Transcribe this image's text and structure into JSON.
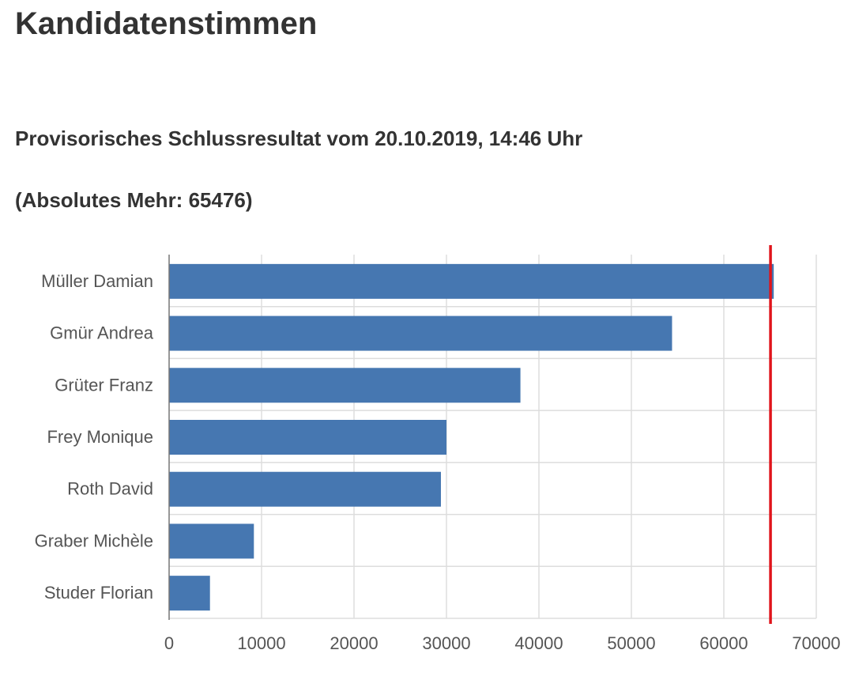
{
  "title": "Kandidatenstimmen",
  "subtitle": "Provisorisches Schlussresultat vom 20.10.2019, 14:46 Uhr",
  "majority_text": "(Absolutes Mehr: 65476)",
  "chart_data": {
    "type": "bar",
    "orientation": "horizontal",
    "categories": [
      "Müller Damian",
      "Gmür Andrea",
      "Grüter Franz",
      "Frey Monique",
      "Roth David",
      "Graber Michèle",
      "Studer Florian"
    ],
    "values": [
      65400,
      54400,
      38000,
      30000,
      29400,
      9170,
      4420
    ],
    "xlim": [
      0,
      70000
    ],
    "xticks": [
      "0",
      "10000",
      "20000",
      "30000",
      "40000",
      "50000",
      "60000",
      "70000"
    ],
    "reference_line": {
      "value": 65476,
      "color": "#e0141b"
    },
    "bar_color": "#4677b1",
    "grid": true
  }
}
